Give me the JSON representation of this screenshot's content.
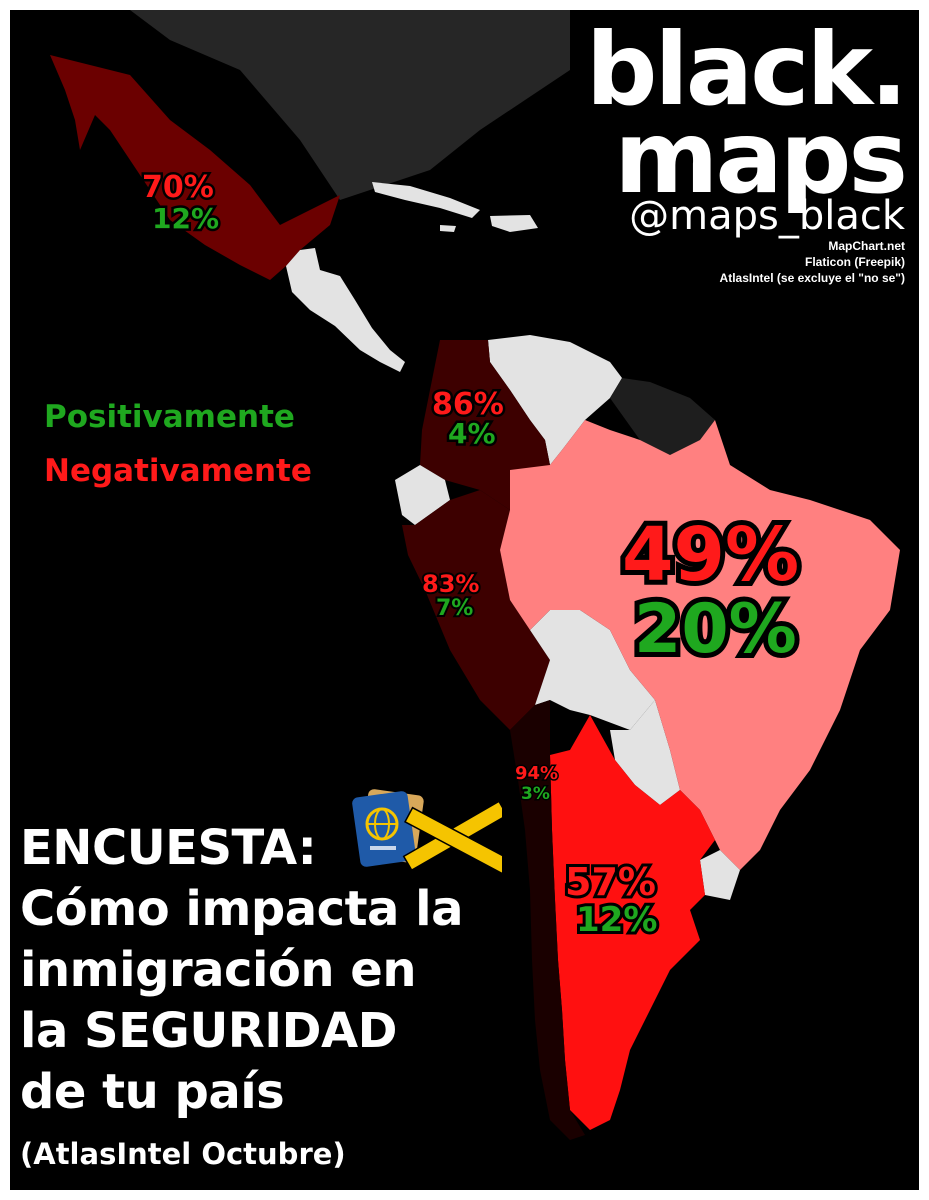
{
  "brand": {
    "line1": "black.",
    "line2": "maps",
    "handle": "@maps_black"
  },
  "credits": [
    "MapChart.net",
    "Flaticon (Freepik)",
    "AtlasIntel (se excluye el \"no se\")"
  ],
  "legend": {
    "positive": "Positivamente",
    "negative": "Negativamente"
  },
  "title": {
    "lines": [
      "ENCUESTA:",
      "Cómo impacta la",
      "inmigración en",
      "la SEGURIDAD",
      "de tu país"
    ],
    "subtitle": "(AtlasIntel Octubre)"
  },
  "colors": {
    "negative_text": "#ff1a1a",
    "positive_text": "#1fa81f",
    "no_data": "#e3e3e3"
  },
  "regions": {
    "mexico": {
      "negative": "70%",
      "positive": "12%",
      "fill": "#6b0000"
    },
    "colombia": {
      "negative": "86%",
      "positive": "4%",
      "fill": "#3d0000"
    },
    "peru": {
      "negative": "83%",
      "positive": "7%",
      "fill": "#3d0000"
    },
    "chile": {
      "negative": "94%",
      "positive": "3%",
      "fill": "#1a0000"
    },
    "brazil": {
      "negative": "49%",
      "positive": "20%",
      "fill": "#ff8080"
    },
    "argentina": {
      "negative": "57%",
      "positive": "12%",
      "fill": "#ff1010"
    }
  },
  "icons": [
    "passport-icon",
    "crime-scene-tape-icon"
  ]
}
